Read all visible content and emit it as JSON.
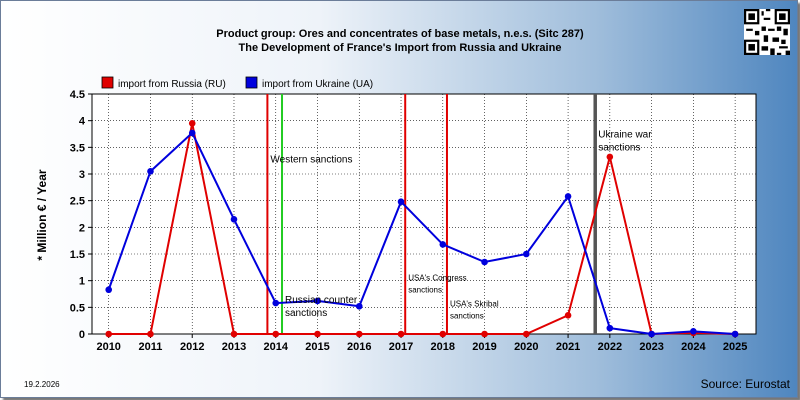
{
  "header": {
    "title_line1": "Product group: Ores and concentrates of base metals, n.e.s. (Sitc 287)",
    "title_line2": "The Development of France's Import from  Russia and Ukraine"
  },
  "footer": {
    "date": "19.2.2026",
    "source": "Source: Eurostat"
  },
  "chart_data": {
    "type": "line",
    "ylabel": "* Million € / Year",
    "ylim": [
      0,
      4.5
    ],
    "yticks": [
      "0",
      "0.5",
      "1",
      "1.5",
      "2",
      "2.5",
      "3",
      "3.5",
      "4",
      "4.5"
    ],
    "x": [
      "2010",
      "2011",
      "2012",
      "2013",
      "2014",
      "2015",
      "2016",
      "2017",
      "2018",
      "2019",
      "2020",
      "2021",
      "2022",
      "2023",
      "2024",
      "2025"
    ],
    "series": [
      {
        "name": "import from Russia (RU)",
        "color": "#e00000",
        "values": [
          0,
          0,
          3.95,
          0,
          0,
          0,
          0,
          0,
          0,
          0,
          0,
          0.35,
          3.32,
          0,
          0.02,
          0
        ]
      },
      {
        "name": "import from Ukraine (UA)",
        "color": "#0000dd",
        "values": [
          0.83,
          3.05,
          3.77,
          2.15,
          0.58,
          0.62,
          0.52,
          2.48,
          1.68,
          1.35,
          1.5,
          2.58,
          0.11,
          0,
          0.05,
          0
        ]
      }
    ],
    "annotations": [
      {
        "text": "Western sanctions",
        "x": 2013.8,
        "y": 3.22,
        "color": "#e00000",
        "line": true,
        "style": "normal"
      },
      {
        "text": "",
        "x": 2014.15,
        "color": "#22cc22",
        "line": true,
        "style": "normal"
      },
      {
        "text": "Russian counter",
        "text2": "sanctions",
        "x": 2014.15,
        "y": 0.58,
        "color": "#22cc22",
        "line": false,
        "style": "normal"
      },
      {
        "text": "USA's Congress",
        "text2": "sanctions",
        "x": 2017.1,
        "y": 1.0,
        "color": "#e00000",
        "line": true,
        "style": "small"
      },
      {
        "text": "USA's Skribal",
        "text2": "sanctions",
        "x": 2018.1,
        "y": 0.52,
        "color": "#e00000",
        "line": true,
        "style": "small"
      },
      {
        "text": "Ukraine war",
        "text2": "sanctions",
        "x": 2021.65,
        "y": 3.68,
        "color": "#555555",
        "line": true,
        "style": "normal"
      }
    ],
    "legend_position": "top-left",
    "grid": true
  }
}
